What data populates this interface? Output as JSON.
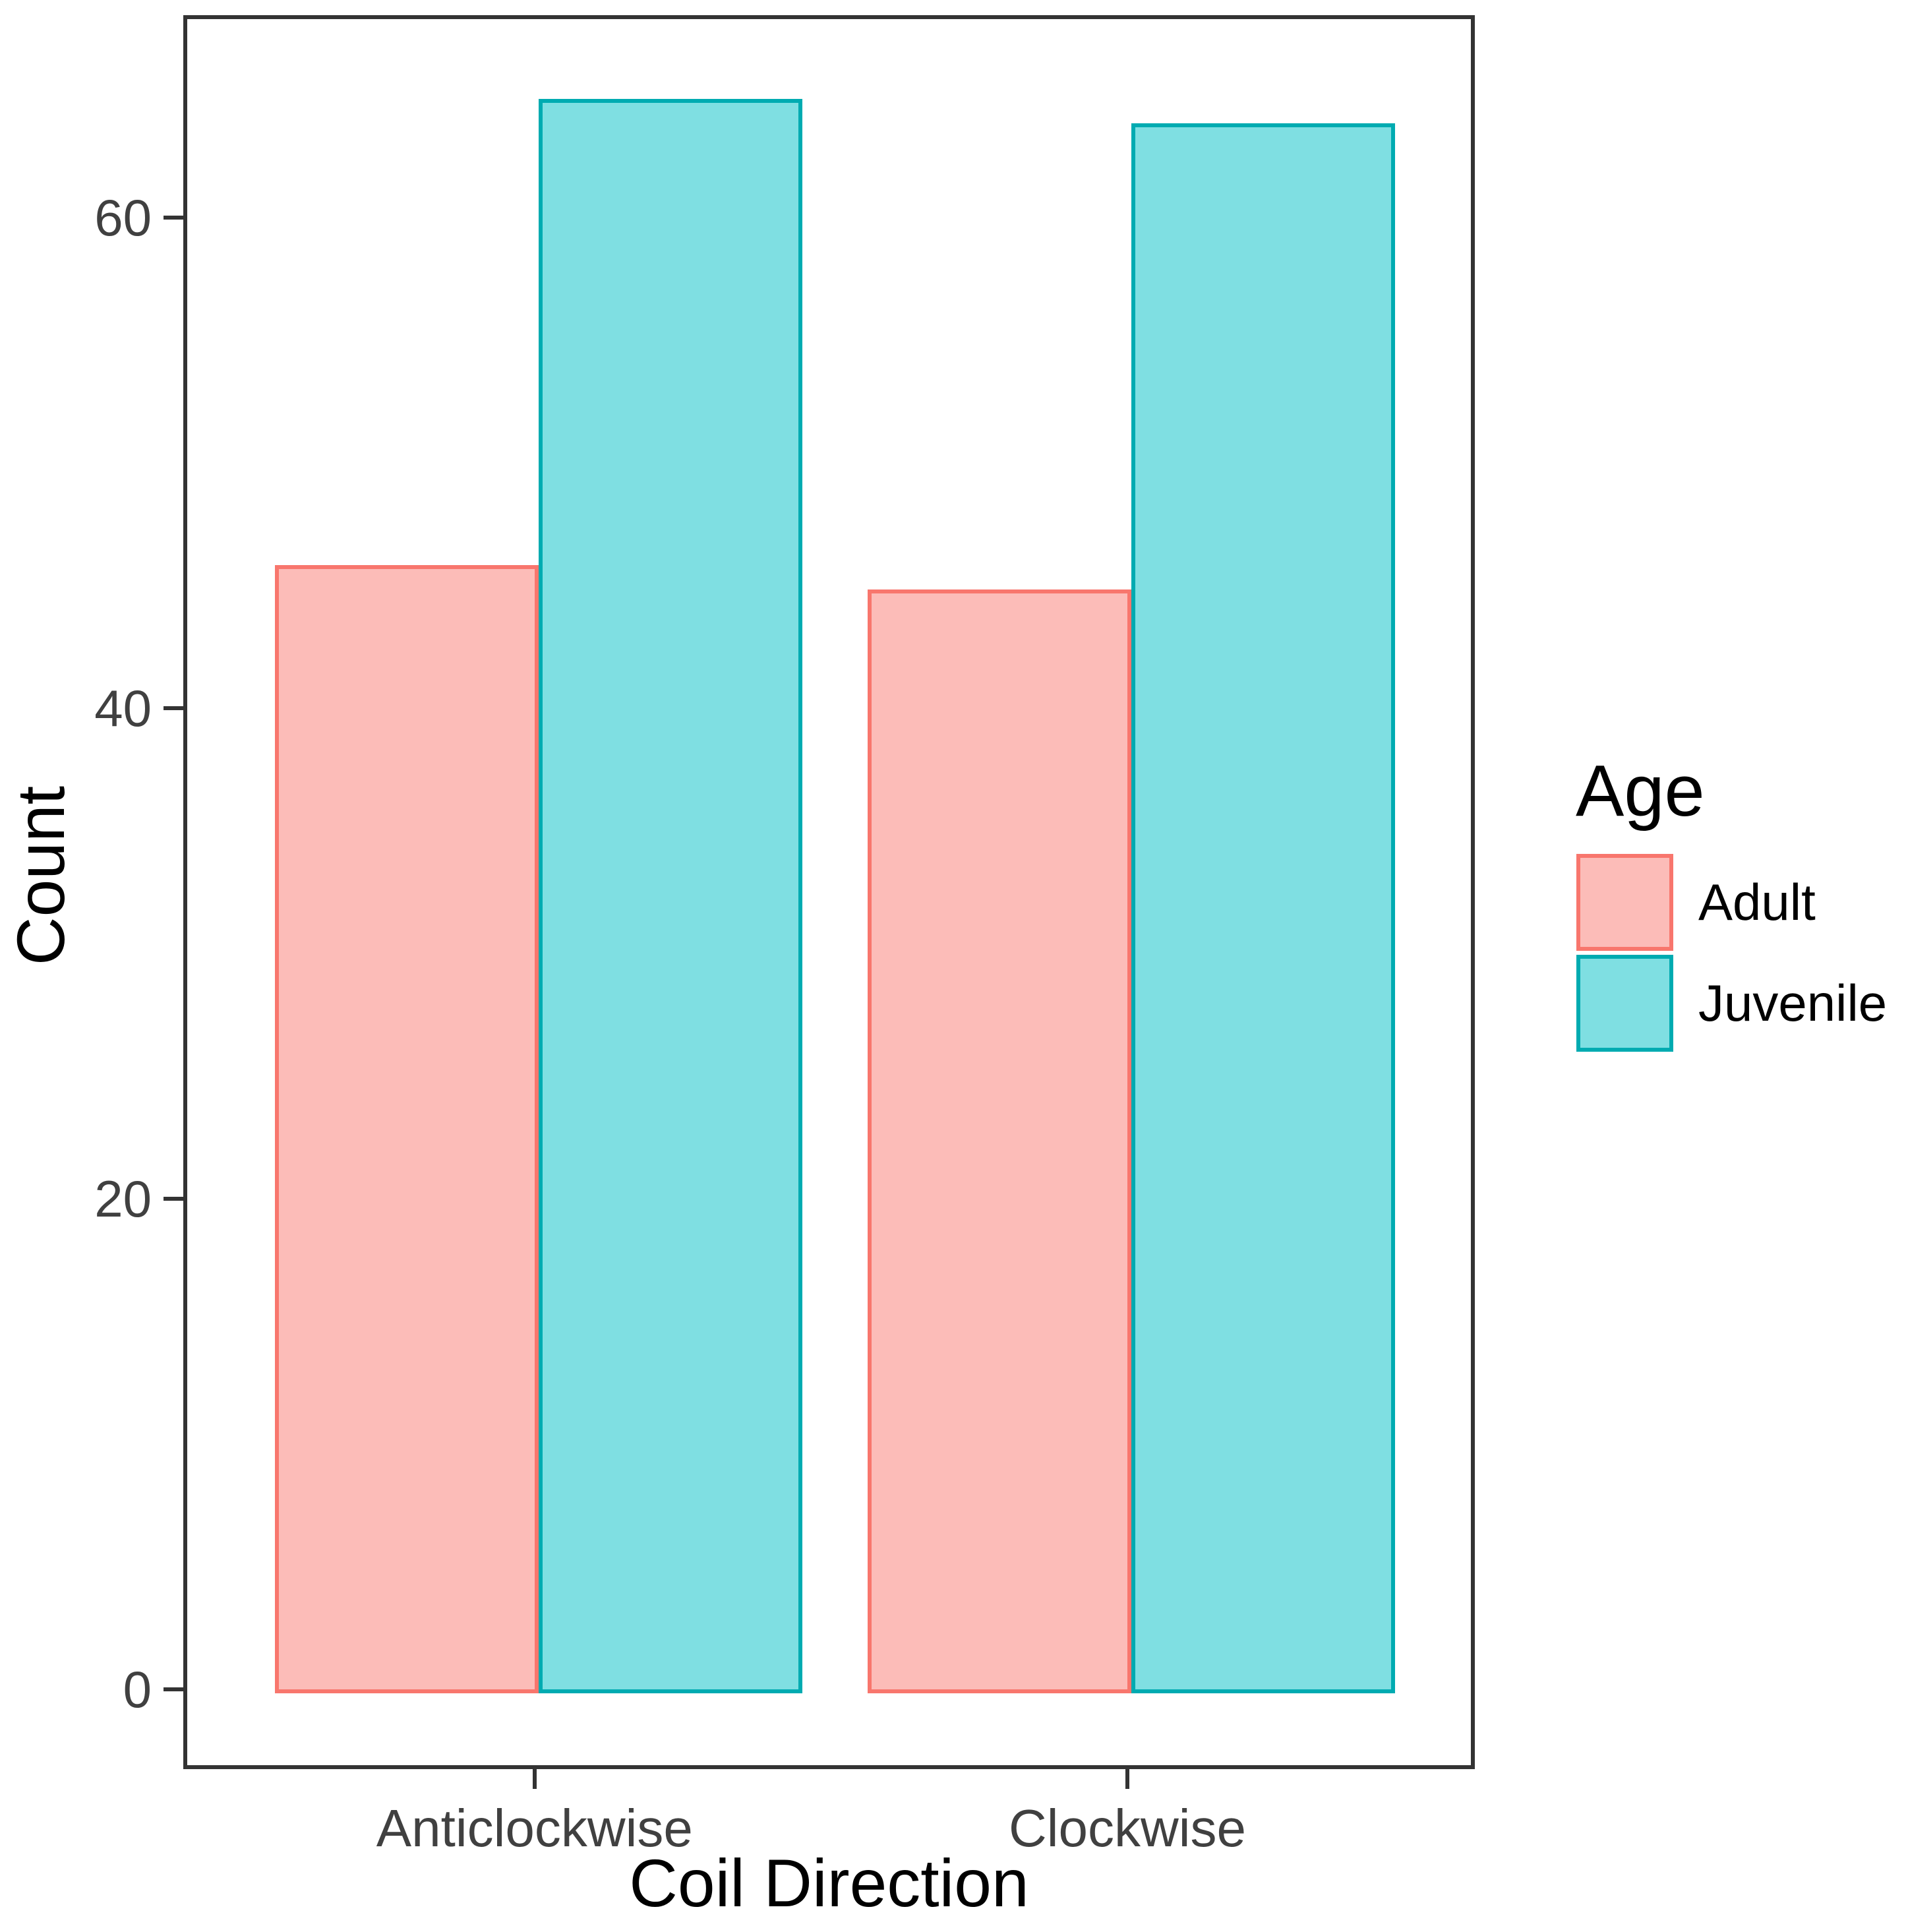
{
  "chart_data": {
    "type": "bar",
    "title": "",
    "xlabel": "Coil Direction",
    "ylabel": "Count",
    "categories": [
      "Anticlockwise",
      "Clockwise"
    ],
    "series": [
      {
        "name": "Adult",
        "values": [
          46,
          45
        ],
        "fill": "#FCBCB8",
        "stroke": "#F8766D"
      },
      {
        "name": "Juvenile",
        "values": [
          65,
          64
        ],
        "fill": "#7FDFE2",
        "stroke": "#00ABB1"
      }
    ],
    "yticks": [
      0,
      20,
      40,
      60
    ],
    "ylim": [
      -3.25,
      68.25
    ],
    "grid": false,
    "legend": {
      "title": "Age",
      "position": "right"
    },
    "colors": {
      "panel_border": "#333333",
      "tick_label": "#404040",
      "title_text": "#000000"
    }
  }
}
